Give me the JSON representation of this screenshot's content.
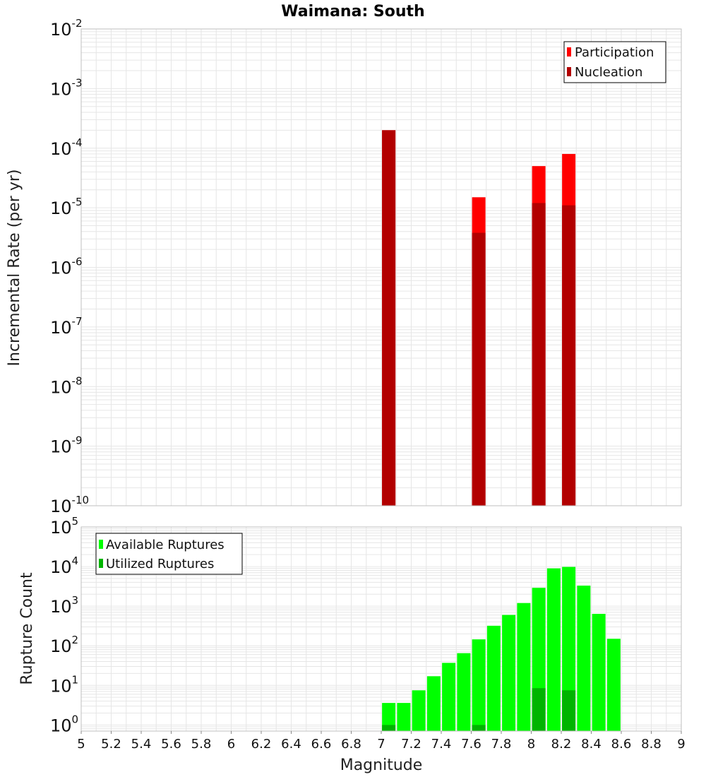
{
  "title": "Waimana: South",
  "colors": {
    "participation": "#ff0000",
    "nucleation": "#b20000",
    "available": "#00ff00",
    "utilized": "#00b400",
    "grid": "#e6e6e6",
    "frame": "#bfbfbf"
  },
  "chart_data": [
    {
      "type": "bar",
      "panel": "top",
      "xlabel": "",
      "ylabel": "Incremental Rate (per yr)",
      "yscale": "log",
      "ylim": [
        1e-10,
        0.01
      ],
      "xlim": [
        5,
        9
      ],
      "legend_position": "top-right",
      "y_ticks": [
        {
          "base": "10",
          "exp": "-2",
          "value": 0.01
        },
        {
          "base": "10",
          "exp": "-3",
          "value": 0.001
        },
        {
          "base": "10",
          "exp": "-4",
          "value": 0.0001
        },
        {
          "base": "10",
          "exp": "-5",
          "value": 1e-05
        },
        {
          "base": "10",
          "exp": "-6",
          "value": 1e-06
        },
        {
          "base": "10",
          "exp": "-7",
          "value": 1e-07
        },
        {
          "base": "10",
          "exp": "-8",
          "value": 1e-08
        },
        {
          "base": "10",
          "exp": "-9",
          "value": 1e-09
        },
        {
          "base": "10",
          "exp": "-10",
          "value": 1e-10
        }
      ],
      "series": [
        {
          "name": "Participation",
          "color": "#ff0000",
          "x": [
            7.05,
            7.65,
            8.05,
            8.25
          ],
          "values": [
            0.0002,
            1.5e-05,
            5e-05,
            8e-05
          ]
        },
        {
          "name": "Nucleation",
          "color": "#b20000",
          "x": [
            7.05,
            7.65,
            8.05,
            8.25
          ],
          "values": [
            0.0002,
            3.8e-06,
            1.2e-05,
            1.1e-05
          ]
        }
      ]
    },
    {
      "type": "bar",
      "panel": "bottom",
      "xlabel": "Magnitude",
      "ylabel": "Rupture Count",
      "yscale": "log",
      "ylim": [
        0.7,
        100000
      ],
      "xlim": [
        5,
        9
      ],
      "legend_position": "top-left",
      "x_ticks": [
        "5",
        "5.2",
        "5.4",
        "5.6",
        "5.8",
        "6",
        "6.2",
        "6.4",
        "6.6",
        "6.8",
        "7",
        "7.2",
        "7.4",
        "7.6",
        "7.8",
        "8",
        "8.2",
        "8.4",
        "8.6",
        "8.8",
        "9"
      ],
      "y_ticks": [
        {
          "base": "10",
          "exp": "5",
          "value": 100000
        },
        {
          "base": "10",
          "exp": "4",
          "value": 10000
        },
        {
          "base": "10",
          "exp": "3",
          "value": 1000
        },
        {
          "base": "10",
          "exp": "2",
          "value": 100
        },
        {
          "base": "10",
          "exp": "1",
          "value": 10
        },
        {
          "base": "10",
          "exp": "0",
          "value": 1
        }
      ],
      "series": [
        {
          "name": "Available Ruptures",
          "color": "#00ff00",
          "x": [
            7.05,
            7.15,
            7.25,
            7.35,
            7.45,
            7.55,
            7.65,
            7.75,
            7.85,
            7.95,
            8.05,
            8.15,
            8.25,
            8.35,
            8.45,
            8.55
          ],
          "values": [
            3.6,
            3.6,
            7.5,
            17,
            37,
            65,
            145,
            320,
            600,
            1200,
            2900,
            9000,
            9800,
            3300,
            640,
            150
          ]
        },
        {
          "name": "Utilized Ruptures",
          "color": "#00b400",
          "x": [
            7.05,
            7.65,
            8.05,
            8.25
          ],
          "values": [
            1,
            1,
            8.5,
            7.5
          ]
        }
      ]
    }
  ]
}
